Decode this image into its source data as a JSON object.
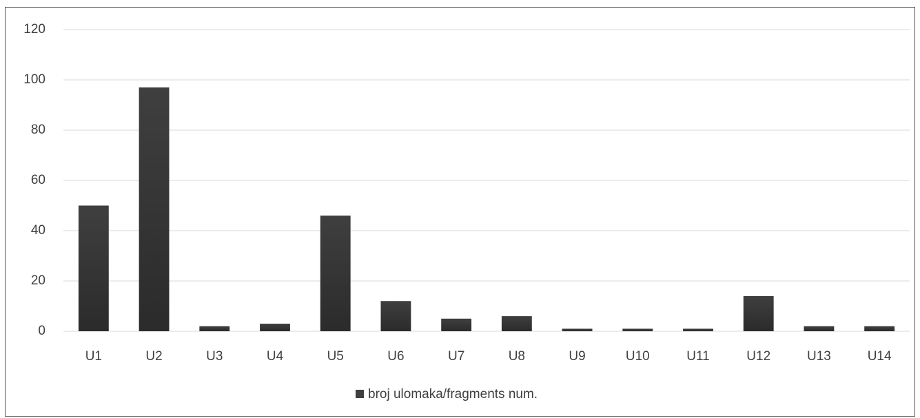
{
  "chart_data": {
    "type": "bar",
    "categories": [
      "U1",
      "U2",
      "U3",
      "U4",
      "U5",
      "U6",
      "U7",
      "U8",
      "U9",
      "U10",
      "U11",
      "U12",
      "U13",
      "U14"
    ],
    "series": [
      {
        "name": "broj ulomaka/fragments num.",
        "color": "#3f3f3f",
        "values": [
          50,
          97,
          2,
          3,
          46,
          12,
          5,
          6,
          1,
          1,
          1,
          14,
          2,
          2
        ]
      }
    ],
    "ylim": [
      0,
      120
    ],
    "yticks": [
      0,
      20,
      40,
      60,
      80,
      100,
      120
    ],
    "grid": true,
    "legend": "bottom"
  }
}
